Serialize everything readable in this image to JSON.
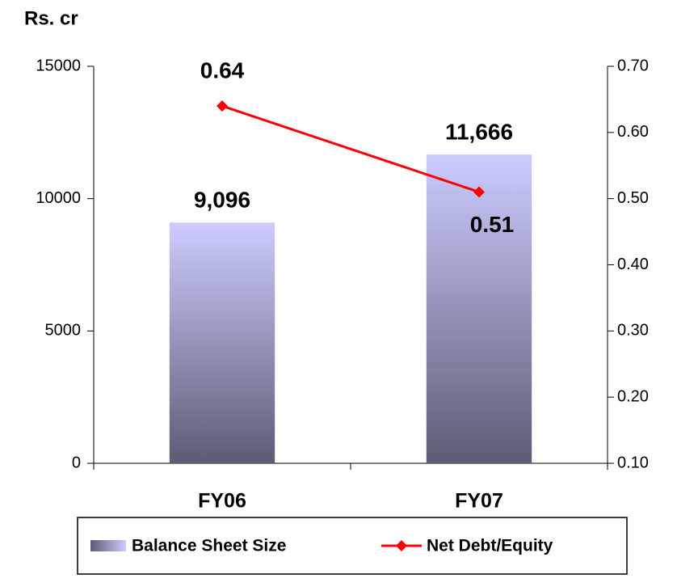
{
  "chart_data": {
    "type": "bar_line",
    "ylabel": "Rs. cr",
    "categories": [
      "FY06",
      "FY07"
    ],
    "series": [
      {
        "name": "Balance Sheet Size",
        "type": "bar",
        "color": "#9c9cd0",
        "values": [
          9096,
          11666
        ],
        "value_labels": [
          "9,096",
          "11,666"
        ]
      },
      {
        "name": "Net Debt/Equity",
        "type": "line",
        "color": "#ff0000",
        "axis": "y2",
        "values": [
          0.64,
          0.51
        ]
      }
    ],
    "ylim": [
      0,
      15000
    ],
    "yticks": [
      0,
      5000,
      10000,
      15000
    ],
    "y2lim": [
      0.1,
      0.7
    ],
    "y2ticks": [
      {
        "value": 0.1,
        "label": "0.10"
      },
      {
        "value": 0.2,
        "label": "0.20"
      },
      {
        "value": 0.3,
        "label": "0.30"
      },
      {
        "value": 0.4,
        "label": "0.40"
      },
      {
        "value": 0.5,
        "label": "0.50"
      },
      {
        "value": 0.6,
        "label": "0.60"
      },
      {
        "value": 0.7,
        "label": "0.70"
      }
    ],
    "legend": "bottom"
  }
}
